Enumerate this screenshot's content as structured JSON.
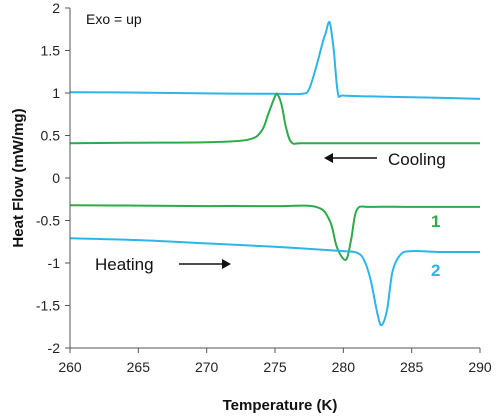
{
  "chart_data": {
    "type": "line",
    "xlabel": "Temperature (K)",
    "ylabel": "Heat Flow (mW/mg)",
    "xlim": [
      260,
      290
    ],
    "ylim": [
      -2,
      2
    ],
    "x_ticks": [
      260,
      265,
      270,
      275,
      280,
      285,
      290
    ],
    "y_ticks": [
      2,
      1.5,
      1,
      0.5,
      0,
      -0.5,
      -1,
      -1.5,
      -2
    ],
    "y_tick_labels": [
      "2",
      "1.5",
      "1",
      "0.5",
      "0",
      "-0.5",
      "-1",
      "-1.5",
      "-2"
    ],
    "grid": false,
    "annotations": {
      "exo": "Exo = up",
      "cooling": "Cooling",
      "heating": "Heating",
      "label_1": "1",
      "label_2": "2"
    },
    "colors": {
      "green": "#2eaa49",
      "blue": "#2cb5e8",
      "axis": "#555555",
      "text": "#111111"
    },
    "series": [
      {
        "name": "2",
        "group": "cooling",
        "color": "#2cb5e8",
        "x": [
          260,
          265,
          270,
          275,
          277,
          277.5,
          278,
          278.5,
          278.7,
          279,
          279.3,
          279.6,
          280,
          282,
          285,
          288,
          290
        ],
        "y": [
          1.01,
          1.005,
          0.995,
          0.99,
          0.99,
          1.05,
          1.3,
          1.6,
          1.7,
          1.83,
          1.5,
          1.0,
          0.97,
          0.96,
          0.95,
          0.94,
          0.93
        ]
      },
      {
        "name": "1",
        "group": "cooling",
        "color": "#2eaa49",
        "x": [
          260,
          265,
          270,
          273,
          274,
          274.5,
          275,
          275.2,
          275.5,
          275.8,
          276.2,
          277,
          280,
          285,
          290
        ],
        "y": [
          0.41,
          0.415,
          0.42,
          0.45,
          0.55,
          0.75,
          0.96,
          0.98,
          0.85,
          0.6,
          0.42,
          0.41,
          0.41,
          0.41,
          0.41
        ]
      },
      {
        "name": "1",
        "group": "heating",
        "color": "#2eaa49",
        "x": [
          260,
          265,
          270,
          275,
          278,
          279,
          279.5,
          280,
          280.3,
          280.6,
          281,
          282,
          285,
          290
        ],
        "y": [
          -0.32,
          -0.325,
          -0.33,
          -0.33,
          -0.34,
          -0.5,
          -0.8,
          -0.95,
          -0.93,
          -0.7,
          -0.37,
          -0.34,
          -0.34,
          -0.34
        ]
      },
      {
        "name": "2",
        "group": "heating",
        "color": "#2cb5e8",
        "x": [
          260,
          265,
          270,
          275,
          280,
          281,
          281.5,
          282,
          282.5,
          282.8,
          283.2,
          283.6,
          284.2,
          285,
          287,
          290
        ],
        "y": [
          -0.71,
          -0.73,
          -0.77,
          -0.81,
          -0.86,
          -0.88,
          -0.96,
          -1.2,
          -1.6,
          -1.73,
          -1.55,
          -1.1,
          -0.9,
          -0.86,
          -0.87,
          -0.87
        ]
      }
    ]
  }
}
